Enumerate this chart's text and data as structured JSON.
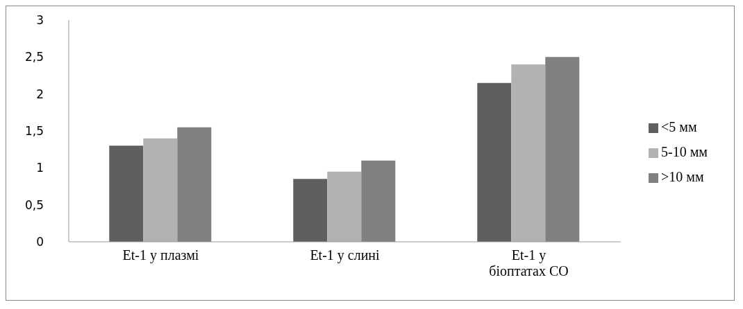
{
  "chart_data": {
    "type": "bar",
    "categories": [
      "Et-1 у плазмі",
      "Et-1 у слині",
      "Et-1 у біоптатах СО"
    ],
    "series": [
      {
        "name": "<5 мм",
        "color": "#5f5f5f",
        "values": [
          1.3,
          0.85,
          2.15
        ]
      },
      {
        "name": "5-10 мм",
        "color": "#b2b2b2",
        "values": [
          1.4,
          0.95,
          2.4
        ]
      },
      {
        "name": ">10 мм",
        "color": "#808080",
        "values": [
          1.55,
          1.1,
          2.5
        ]
      }
    ],
    "ylim": [
      0,
      3
    ],
    "yticks": [
      0,
      {
        "value": 0.5,
        "label": "0,5"
      },
      1,
      {
        "value": 1.5,
        "label": "1,5"
      },
      2,
      {
        "value": 2.5,
        "label": "2,5"
      },
      3
    ],
    "grid": false,
    "legend": "right"
  }
}
